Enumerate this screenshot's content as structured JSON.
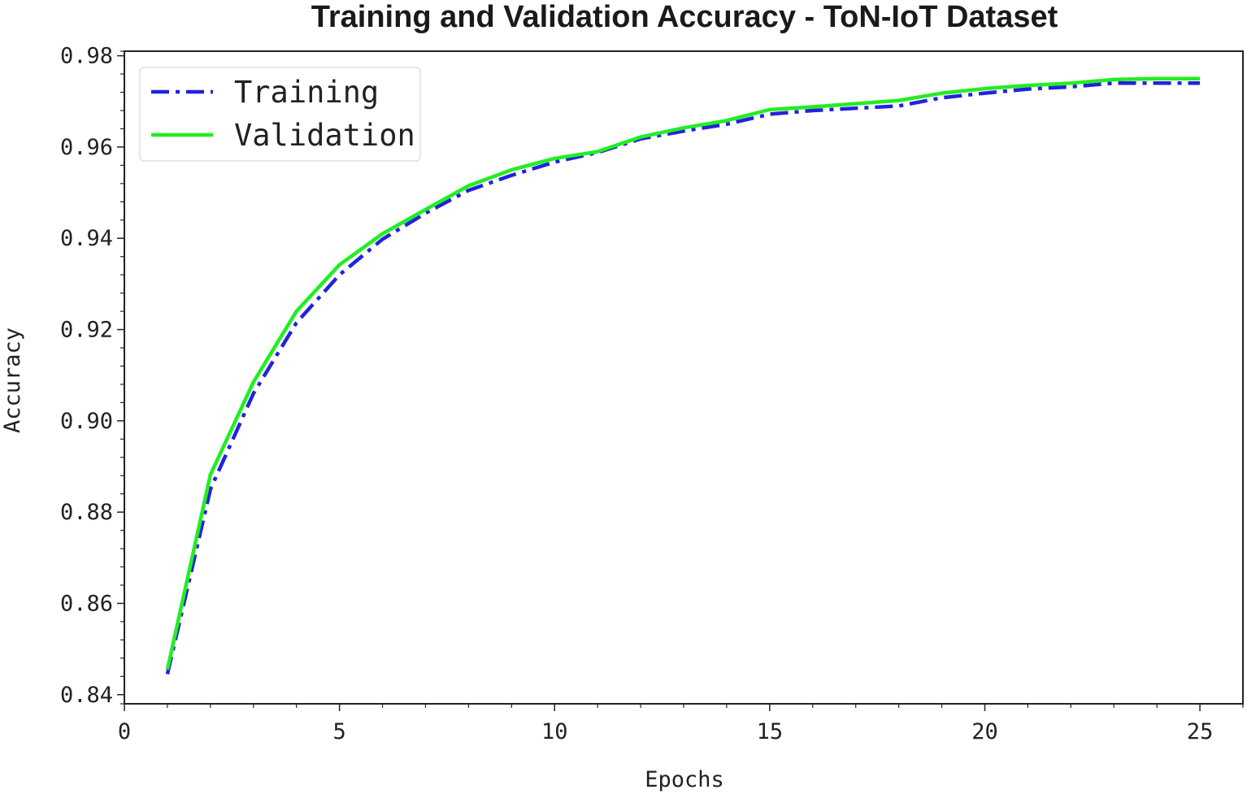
{
  "chart_data": {
    "type": "line",
    "title": "Training and Validation Accuracy - ToN-IoT Dataset",
    "xlabel": "Epochs",
    "ylabel": "Accuracy",
    "xlim": [
      0,
      26
    ],
    "ylim": [
      0.838,
      0.981
    ],
    "xticks": [
      0,
      5,
      10,
      15,
      20,
      25
    ],
    "xtick_labels": [
      "0",
      "5",
      "10",
      "15",
      "20",
      "25"
    ],
    "yticks": [
      0.84,
      0.86,
      0.88,
      0.9,
      0.92,
      0.94,
      0.96,
      0.98
    ],
    "ytick_labels": [
      "0.84",
      "0.86",
      "0.88",
      "0.90",
      "0.92",
      "0.94",
      "0.96",
      "0.98"
    ],
    "grid": false,
    "legend_position": "top-left",
    "x": [
      1,
      2,
      3,
      4,
      5,
      6,
      7,
      8,
      9,
      10,
      11,
      12,
      13,
      14,
      15,
      16,
      17,
      18,
      19,
      20,
      21,
      22,
      23,
      24,
      25
    ],
    "series": [
      {
        "name": "Training",
        "color": "#2222dd",
        "style": "dashdot",
        "values": [
          0.8445,
          0.885,
          0.906,
          0.9215,
          0.932,
          0.9398,
          0.9455,
          0.9505,
          0.9538,
          0.9567,
          0.9588,
          0.9618,
          0.9635,
          0.965,
          0.9672,
          0.968,
          0.9685,
          0.969,
          0.9708,
          0.9718,
          0.9727,
          0.9732,
          0.974,
          0.974,
          0.974
        ]
      },
      {
        "name": "Validation",
        "color": "#22ee22",
        "style": "solid",
        "values": [
          0.8455,
          0.8882,
          0.9085,
          0.924,
          0.9342,
          0.941,
          0.9463,
          0.9515,
          0.955,
          0.9575,
          0.959,
          0.9622,
          0.9642,
          0.9658,
          0.9682,
          0.9688,
          0.9695,
          0.9702,
          0.9718,
          0.9728,
          0.9735,
          0.974,
          0.9748,
          0.975,
          0.975
        ]
      }
    ]
  }
}
